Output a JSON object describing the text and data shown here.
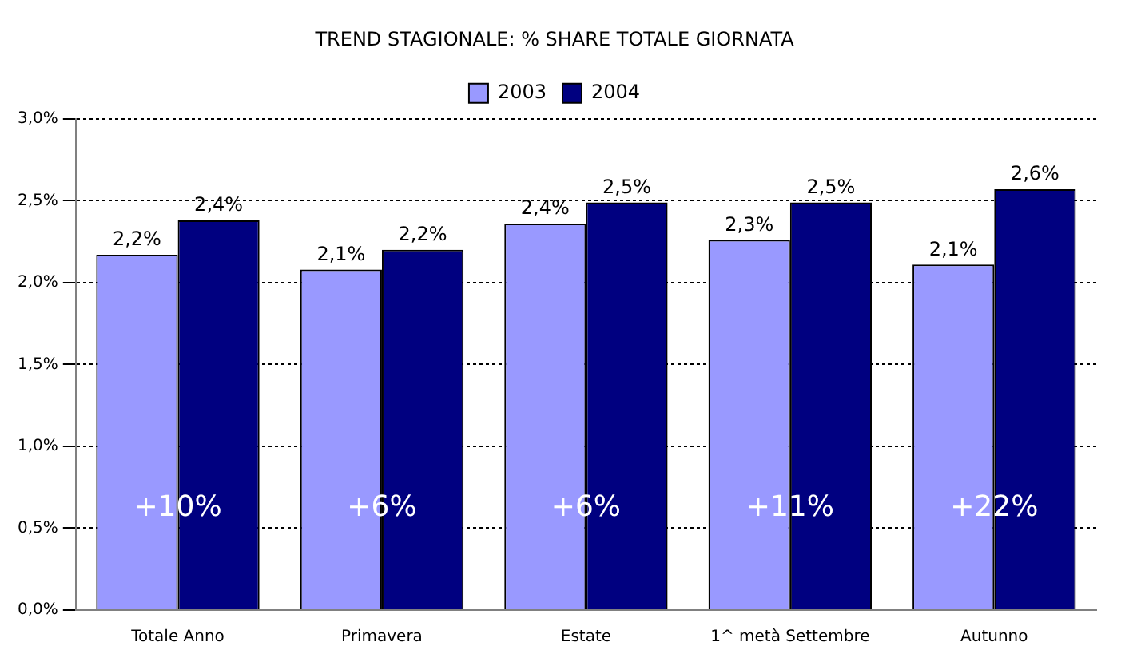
{
  "chart_data": {
    "type": "bar",
    "title": "TREND STAGIONALE: % SHARE TOTALE GIORNATA",
    "categories": [
      "Totale Anno",
      "Primavera",
      "Estate",
      "1^ metà Settembre",
      "Autunno"
    ],
    "series": [
      {
        "name": "2003",
        "color": "#9999ff",
        "values": [
          2.17,
          2.08,
          2.36,
          2.26,
          2.11
        ],
        "value_labels": [
          "2,2%",
          "2,1%",
          "2,4%",
          "2,3%",
          "2,1%"
        ]
      },
      {
        "name": "2004",
        "color": "#000080",
        "values": [
          2.38,
          2.2,
          2.49,
          2.49,
          2.57
        ],
        "value_labels": [
          "2,4%",
          "2,2%",
          "2,5%",
          "2,5%",
          "2,6%"
        ]
      }
    ],
    "ylim": [
      0,
      3
    ],
    "yticks": [
      {
        "value": 0,
        "label": "0,0%"
      },
      {
        "value": 0.5,
        "label": "0,5%"
      },
      {
        "value": 1,
        "label": "1,0%"
      },
      {
        "value": 1.5,
        "label": "1,5%"
      },
      {
        "value": 2,
        "label": "2,0%"
      },
      {
        "value": 2.5,
        "label": "2,5%"
      },
      {
        "value": 3,
        "label": "3,0%"
      }
    ],
    "grid": "y",
    "legend": "top",
    "annotations": [
      {
        "text": "+10%",
        "x": "Totale Anno",
        "y": 0.62
      },
      {
        "text": "+6%",
        "x": "Primavera",
        "y": 0.62
      },
      {
        "text": "+6%",
        "x": "Estate",
        "y": 0.62
      },
      {
        "text": "+11%",
        "x": "1^ metà Settembre",
        "y": 0.62
      },
      {
        "text": "+22%",
        "x": "Autunno",
        "y": 0.62
      }
    ]
  }
}
